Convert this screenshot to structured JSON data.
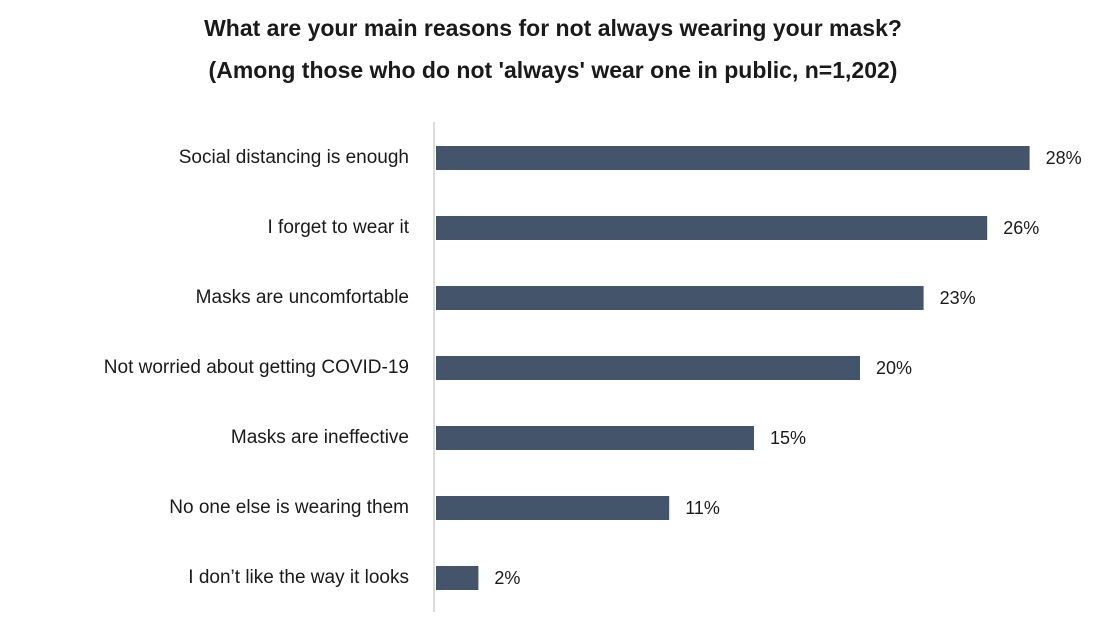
{
  "chart_data": {
    "type": "bar",
    "orientation": "horizontal",
    "title": "What are your main reasons for not always wearing your mask?",
    "subtitle": "(Among those who do not 'always' wear one in public, n=1,202)",
    "categories": [
      "Social distancing is enough",
      "I forget to wear it",
      "Masks are uncomfortable",
      "Not worried about getting COVID-19",
      "Masks are ineffective",
      "No one else is wearing them",
      "I don’t like the way it looks"
    ],
    "values": [
      28,
      26,
      23,
      20,
      15,
      11,
      2
    ],
    "value_labels": [
      "28%",
      "26%",
      "23%",
      "20%",
      "15%",
      "11%",
      "2%"
    ],
    "color": "#44546a"
  }
}
